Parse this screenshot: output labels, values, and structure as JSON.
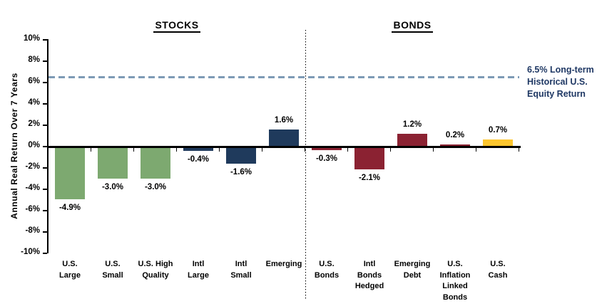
{
  "chart_data": {
    "type": "bar",
    "ylabel": "Annual Real Return Over 7 Years",
    "group_titles": [
      {
        "label": "STOCKS",
        "start_index": 0,
        "end_index": 5
      },
      {
        "label": "BONDS",
        "start_index": 6,
        "end_index": 10
      }
    ],
    "ylim": [
      -10,
      10
    ],
    "grid": "off",
    "legend": "none",
    "yticks": [
      {
        "value": 10,
        "label": "10%"
      },
      {
        "value": 8,
        "label": "8%"
      },
      {
        "value": 6,
        "label": "6%"
      },
      {
        "value": 4,
        "label": "4%"
      },
      {
        "value": 2,
        "label": "2%"
      },
      {
        "value": 0,
        "label": "0%"
      },
      {
        "value": -2,
        "label": "-2%"
      },
      {
        "value": -4,
        "label": "-4%"
      },
      {
        "value": -6,
        "label": "-6%"
      },
      {
        "value": -8,
        "label": "-8%"
      },
      {
        "value": -10,
        "label": "-10%"
      }
    ],
    "categories": [
      {
        "name": "U.S. Large",
        "lines": [
          "U.S.",
          "Large"
        ],
        "value": -4.9,
        "value_label": "-4.9%",
        "color_key": "us_stocks"
      },
      {
        "name": "U.S. Small",
        "lines": [
          "U.S.",
          "Small"
        ],
        "value": -3.0,
        "value_label": "-3.0%",
        "color_key": "us_stocks"
      },
      {
        "name": "U.S. High Quality",
        "lines": [
          "U.S. High",
          "Quality"
        ],
        "value": -3.0,
        "value_label": "-3.0%",
        "color_key": "us_stocks"
      },
      {
        "name": "Intl Large",
        "lines": [
          "Intl",
          "Large"
        ],
        "value": -0.4,
        "value_label": "-0.4%",
        "color_key": "intl_stocks"
      },
      {
        "name": "Intl Small",
        "lines": [
          "Intl",
          "Small"
        ],
        "value": -1.6,
        "value_label": "-1.6%",
        "color_key": "intl_stocks"
      },
      {
        "name": "Emerging",
        "lines": [
          "Emerging"
        ],
        "value": 1.6,
        "value_label": "1.6%",
        "color_key": "intl_stocks"
      },
      {
        "name": "U.S. Bonds",
        "lines": [
          "U.S.",
          "Bonds"
        ],
        "value": -0.3,
        "value_label": "-0.3%",
        "color_key": "bonds"
      },
      {
        "name": "Intl Bonds Hedged",
        "lines": [
          "Intl",
          "Bonds",
          "Hedged"
        ],
        "value": -2.1,
        "value_label": "-2.1%",
        "color_key": "bonds"
      },
      {
        "name": "Emerging Debt",
        "lines": [
          "Emerging",
          "Debt"
        ],
        "value": 1.2,
        "value_label": "1.2%",
        "color_key": "bonds"
      },
      {
        "name": "U.S. Inflation Linked Bonds",
        "lines": [
          "U.S.",
          "Inflation",
          "Linked",
          "Bonds"
        ],
        "value": 0.2,
        "value_label": "0.2%",
        "color_key": "bonds"
      },
      {
        "name": "U.S. Cash",
        "lines": [
          "U.S.",
          "Cash"
        ],
        "value": 0.7,
        "value_label": "0.7%",
        "color_key": "cash"
      }
    ],
    "separator_after_index": 5,
    "reference_line": {
      "value": 6.5,
      "label": "6.5% Long-term\nHistorical U.S.\nEquity Return"
    },
    "colors": {
      "us_stocks": "#7DA970",
      "intl_stocks": "#1F3A5C",
      "bonds": "#8B2232",
      "cash": "#FDC62E",
      "reference_line": "#7D9AB5",
      "annotation_text": "#1F3864",
      "axis": "#000000"
    }
  }
}
